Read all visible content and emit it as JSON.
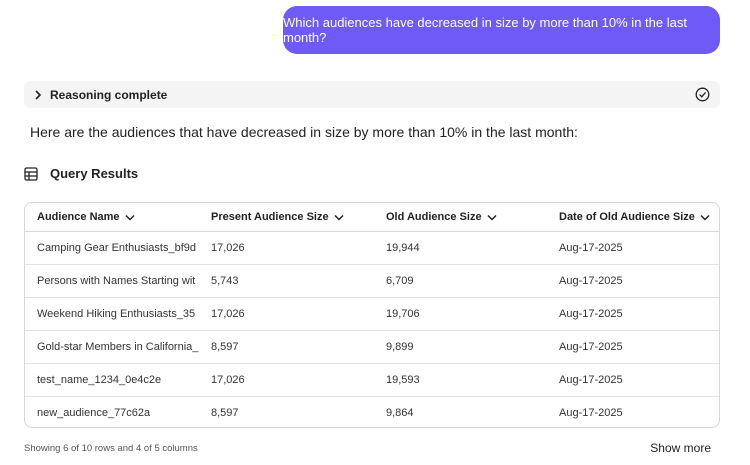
{
  "user_message": "Which audiences have decreased in size by more than 10% in the last month?",
  "reasoning": {
    "label": "Reasoning complete"
  },
  "answer": {
    "intro": "Here are the audiences that have decreased in size by more than 10% in the last month:"
  },
  "results": {
    "title": "Query Results",
    "table": {
      "headers": [
        "Audience Name",
        "Present Audience Size",
        "Old Audience Size",
        "Date of Old Audience Size"
      ],
      "rows": [
        [
          "Camping Gear Enthusiasts_bf9d",
          "17,026",
          "19,944",
          "Aug-17-2025"
        ],
        [
          "Persons with Names Starting wit",
          "5,743",
          "6,709",
          "Aug-17-2025"
        ],
        [
          "Weekend Hiking Enthusiasts_35",
          "17,026",
          "19,706",
          "Aug-17-2025"
        ],
        [
          "Gold-star Members in California_",
          "8,597",
          "9,899",
          "Aug-17-2025"
        ],
        [
          "test_name_1234_0e4c2e",
          "17,026",
          "19,593",
          "Aug-17-2025"
        ],
        [
          "new_audience_77c62a",
          "8,597",
          "9,864",
          "Aug-17-2025"
        ]
      ]
    },
    "footer": "Showing 6 of 10 rows and 4 of 5 columns",
    "show_more": "Show more"
  }
}
